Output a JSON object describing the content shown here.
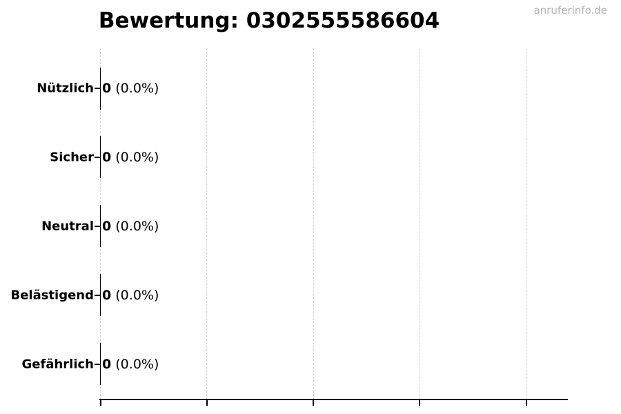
{
  "watermark": "anruferinfo.de",
  "chart_data": {
    "type": "bar",
    "orientation": "horizontal",
    "title": "Bewertung: 0302555586604",
    "categories": [
      "Nützlich",
      "Sicher",
      "Neutral",
      "Belästigend",
      "Gefährlich"
    ],
    "values": [
      0,
      0,
      0,
      0,
      0
    ],
    "percent_labels": [
      "(0.0%)",
      "(0.0%)",
      "(0.0%)",
      "(0.0%)",
      "(0.0%)"
    ],
    "value_labels": [
      "0 (0.0%)",
      "0 (0.0%)",
      "0 (0.0%)",
      "0 (0.0%)",
      "0 (0.0%)"
    ],
    "xlabel": "",
    "ylabel": "",
    "x_tick_labels_visible": false,
    "grid": "5 vertical dashed gridlines, evenly spaced from zero line",
    "legend_position": "none",
    "bar_fill": "none",
    "bar_edge_color": "#000000",
    "colors": {
      "text": "#000000",
      "grid": "#cccccc",
      "axis": "#000000",
      "watermark": "#b3b3b3",
      "background": "#ffffff"
    }
  }
}
